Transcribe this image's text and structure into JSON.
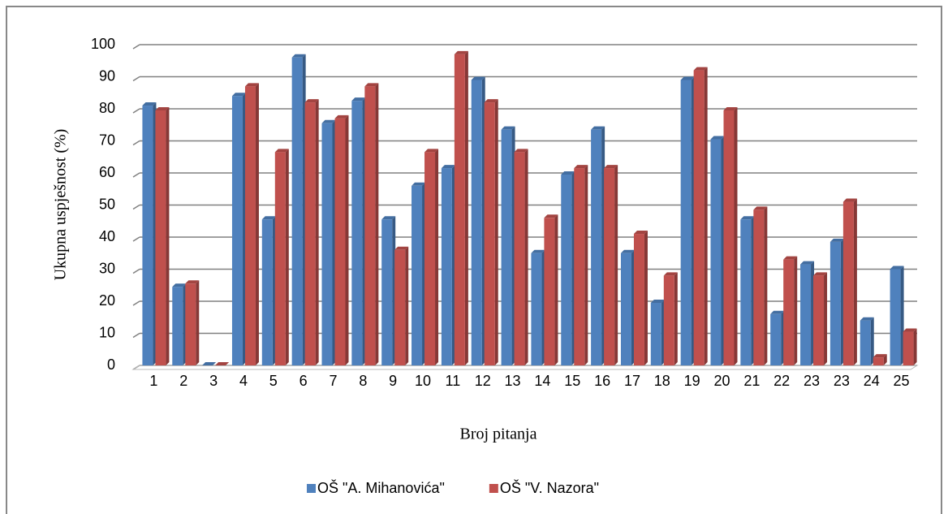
{
  "chart_data": {
    "type": "bar",
    "x_label": "Broj pitanja",
    "y_label": "Ukupna uspješnost (%)",
    "categories": [
      "1",
      "2",
      "3",
      "4",
      "5",
      "6",
      "7",
      "8",
      "9",
      "10",
      "11",
      "12",
      "13",
      "14",
      "15",
      "16",
      "17",
      "18",
      "19",
      "20",
      "21",
      "22",
      "23",
      "23",
      "24",
      "25"
    ],
    "series": [
      {
        "name": "OŠ \"A. Mihanovića\"",
        "color": "#4f81bd",
        "values": [
          81,
          24.5,
          0,
          84,
          45.5,
          96,
          75.5,
          82.5,
          45.5,
          56,
          61.5,
          89,
          73.5,
          35,
          59.5,
          73.5,
          35,
          19.5,
          89,
          70.5,
          45.5,
          16,
          31.5,
          38.5,
          14,
          30
        ]
      },
      {
        "name": "OŠ \"V. Nazora\"",
        "color": "#c0504d",
        "values": [
          79.5,
          25.5,
          0,
          87,
          66.5,
          82,
          77,
          87,
          36,
          66.5,
          97,
          82,
          66.5,
          46,
          61.5,
          61.5,
          41,
          28,
          92,
          79.5,
          48.5,
          33,
          28,
          51,
          2.5,
          10.5
        ]
      }
    ],
    "ylim": [
      0,
      100
    ],
    "yticks": [
      0,
      10,
      20,
      30,
      40,
      50,
      60,
      70,
      80,
      90,
      100
    ],
    "grid": true,
    "legend": "bottom"
  }
}
